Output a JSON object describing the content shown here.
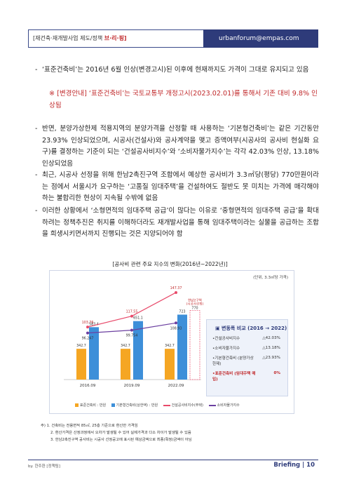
{
  "header": {
    "left_text": "[재건축·재개발사업  제도/정책 ",
    "brand": "브·리·핑]",
    "email": "urbanforum@empas.com"
  },
  "paragraphs": {
    "p1_dash": "-",
    "p1": "‘표준건축비’는 2016년 6월 인상(변경고시)된 이후에 현재까지도 가격이 그대로 유지되고 있음",
    "note": "※ [변경안내] ‘표준건축비’는 국토교통부 개정고시(2023.02.01)를 통해서 기존 대비 9.8% 인상됨",
    "p2_dash": "-",
    "p2": "반면, 분양가상한제 적용지역의 분양가격을 산정할 때 사용하는 ‘기본형건축비’는 같은 기간동안 23.93% 인상되었으며, 시공사(건설사)와 공사계약을 맺고 증액여부(시공사의 공사비 현실화 요구)를 결정하는 기준이 되는 ‘건설공사비지수’와 ‘소비자물가지수’는 각각 42.03% 인상, 13.18% 인상되었음",
    "p3_dash": "-",
    "p3": "최근, 시공사 선정을 위해 한남2촉진구역 조합에서 예상한 공사비가 3.3㎡당(평당) 770만원이라는 점에서 서울시가 요구하는 ‘고품질 임대주택’을 건설하여도 절반도 못 미치는 가격에 매각해야 하는 불합리한 현상이 지속될 수밖에 없음",
    "p4_dash": "-",
    "p4": "이러한 상황에서 ‘소형면적의 임대주택 공급’이 많다는 이유로 ‘중형면적의 임대주택 공급’을 확대하려는 정책추진은 취지를 이해하더라도 재개발사업을 통해 임대주택이라는 실물을 공급하는 조합을 희생시키면서까지 진행되는 것은 지양되어야 함"
  },
  "chart_title": "[공사비 관련 주요 지수의 변화(2016년~2022년)]",
  "chart_data": {
    "type": "bar",
    "unit_label": "(단위, 3.3㎡당 가격)",
    "categories": [
      "2016.09",
      "2019.09",
      "2022.09"
    ],
    "series": [
      {
        "name": "표준건축비 : 만원",
        "kind": "bar",
        "color": "#f5a623",
        "values": [
          342.7,
          342.7,
          342.7
        ]
      },
      {
        "name": "기본형건축비(상한액) : 만원",
        "kind": "bar",
        "color": "#3d8fd9",
        "values": [
          583.4,
          651.1,
          723
        ]
      },
      {
        "name": "건설공사비지수(주택)",
        "kind": "line",
        "color": "#e84a6a",
        "values": [
          103.76,
          117.55,
          147.37
        ]
      },
      {
        "name": "소비자물가지수",
        "kind": "line",
        "color": "#6b3fa0",
        "values": [
          96.247,
          99.754,
          108.93
        ]
      }
    ],
    "extra_bar": {
      "label_line1": "한남2구역",
      "label_line2": "(시공사선정)",
      "value": 770,
      "category": "2022.09"
    }
  },
  "summary_box": {
    "title": "▣ 변동폭 비교 (2016 → 2022)",
    "rows": [
      {
        "label": "•건설공사비지수",
        "value": "△42.03%"
      },
      {
        "label": "•소비자물가지수",
        "value": "△13.18%"
      },
      {
        "label": "•기본형건축비 (분양가상한제)",
        "value": "△23.93%"
      },
      {
        "label": "•표준건축비 (임대주택 매입)",
        "value": "0%"
      }
    ]
  },
  "footnotes": [
    "주) 1. 건축비는 전용면적 85㎡, 25층 기준으로 환산한 가격임",
    "2. 환산가격은 산정과정에서 오차가 발생될 수 있어 실제가격과 다소 차이가 발생될 수 있음",
    "3. 한남2촉진구역 공사비는 시공사 선정공고에 표시된 예상금액으로 최종(확정)금액이 아님"
  ],
  "footer": {
    "left": "by. 한주환 [정책팀]",
    "right": "Briefing | 10"
  }
}
